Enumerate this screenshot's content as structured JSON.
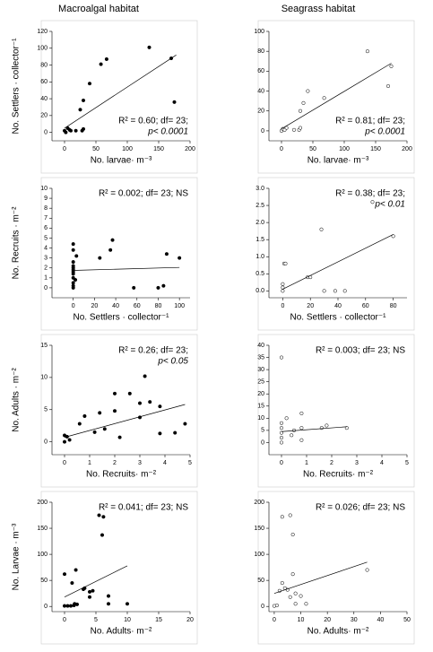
{
  "headers": [
    "Macroalgal habitat",
    "Seagrass habitat"
  ],
  "chart_data": [
    {
      "type": "scatter",
      "marker": "filled",
      "annotation_pos": "bottom-right",
      "xlabel": "No. larvae· m⁻³",
      "ylabel": "No. Settlers · collector⁻¹",
      "annotation": [
        "R² = 0.60; df= 23;",
        "p< 0.0001"
      ],
      "x": [
        0,
        2,
        5,
        8,
        10,
        18,
        25,
        28,
        30,
        30,
        40,
        58,
        67,
        135,
        170,
        175
      ],
      "values": [
        2,
        0,
        5,
        3,
        2,
        2,
        27,
        2,
        38,
        4,
        58,
        81,
        87,
        101,
        88,
        36
      ],
      "trend": {
        "x": [
          0,
          178
        ],
        "y": [
          5,
          92
        ]
      },
      "xlim": [
        -20,
        200
      ],
      "xticks": [
        0,
        50,
        100,
        150,
        200
      ],
      "ylim": [
        -10,
        120
      ],
      "yticks": [
        0,
        20,
        40,
        60,
        80,
        100,
        120
      ]
    },
    {
      "type": "scatter",
      "marker": "open",
      "annotation_pos": "bottom-right",
      "xlabel": "No. larvae· m⁻³",
      "ylabel": "",
      "annotation": [
        "R² = 0.81; df= 23;",
        "p< 0.0001"
      ],
      "x": [
        0,
        2,
        5,
        8,
        20,
        28,
        30,
        30,
        35,
        42,
        68,
        137,
        170,
        175
      ],
      "values": [
        0,
        2,
        1,
        3,
        1,
        1,
        3,
        20,
        28,
        40,
        33,
        80,
        45,
        65
      ],
      "trend": {
        "x": [
          0,
          175
        ],
        "y": [
          2,
          68
        ]
      },
      "xlim": [
        -20,
        200
      ],
      "xticks": [
        0,
        50,
        100,
        150,
        200
      ],
      "ylim": [
        -10,
        100
      ],
      "yticks": [
        0,
        20,
        40,
        60,
        80,
        100
      ]
    },
    {
      "type": "scatter",
      "marker": "filled",
      "annotation_pos": "top-right",
      "xlabel": "No. Settlers · collector⁻¹",
      "ylabel": "No. Recruits · m⁻²",
      "annotation": [
        "R² = 0.002; df= 23; NS"
      ],
      "x": [
        0,
        0,
        0,
        0,
        0,
        0,
        0,
        0,
        0,
        0,
        0,
        0,
        2,
        3,
        25,
        35,
        37,
        57,
        80,
        85,
        88,
        100
      ],
      "values": [
        0,
        0.2,
        0.5,
        1,
        1.4,
        1.6,
        1.8,
        2,
        2.2,
        2.6,
        3.8,
        4.4,
        0.8,
        3.2,
        3,
        3.8,
        4.8,
        0,
        0,
        0.2,
        3.4,
        3
      ],
      "trend": {
        "x": [
          0,
          100
        ],
        "y": [
          1.75,
          2.05
        ]
      },
      "xlim": [
        -20,
        110
      ],
      "xticks": [
        0,
        20,
        40,
        60,
        80,
        100
      ],
      "ylim": [
        -1,
        10
      ],
      "yticks": [
        0,
        1,
        2,
        3,
        4,
        5,
        6,
        7,
        8,
        9,
        10
      ]
    },
    {
      "type": "scatter",
      "marker": "open",
      "annotation_pos": "top-right",
      "xlabel": "No. Settlers · collector⁻¹",
      "ylabel": "",
      "annotation": [
        "R² = 0.38; df= 23;",
        "p< 0.01"
      ],
      "x": [
        0,
        0,
        0,
        1,
        2,
        18,
        20,
        28,
        30,
        38,
        45,
        65,
        80
      ],
      "values": [
        0,
        0.1,
        0.2,
        0.8,
        0.8,
        0.4,
        0.4,
        1.8,
        0,
        0,
        0,
        2.6,
        1.6
      ],
      "trend": {
        "x": [
          0,
          80
        ],
        "y": [
          0.05,
          1.65
        ]
      },
      "xlim": [
        -10,
        90
      ],
      "xticks": [
        0,
        20,
        40,
        60,
        80
      ],
      "ylim": [
        -0.2,
        3
      ],
      "yticks": [
        {
          "value": 0,
          "label": "0.0"
        },
        0.5,
        {
          "value": 1,
          "label": "1.0"
        },
        1.5,
        {
          "value": 2,
          "label": "2.0"
        },
        2.5,
        {
          "value": 3,
          "label": "3.0"
        }
      ]
    },
    {
      "type": "scatter",
      "marker": "filled",
      "annotation_pos": "top-right",
      "xlabel": "No. Recruits· m⁻²",
      "ylabel": "No. Adults · m⁻²",
      "annotation": [
        "R² = 0.26; df= 23;",
        "p< 0.05"
      ],
      "x": [
        0,
        0,
        0.1,
        0.2,
        0.6,
        0.8,
        1.2,
        1.4,
        1.6,
        2,
        2,
        2.2,
        2.6,
        3,
        3,
        3.2,
        3.4,
        3.8,
        3.8,
        4.4,
        4.8
      ],
      "values": [
        0,
        1,
        0.8,
        0.3,
        2.8,
        4,
        1.5,
        4.5,
        2,
        4.8,
        7.5,
        0.7,
        7.5,
        6,
        3.8,
        10.2,
        6.2,
        5.5,
        1.3,
        1.4,
        2.8
      ],
      "trend": {
        "x": [
          0,
          4.8
        ],
        "y": [
          0.7,
          5.8
        ]
      },
      "xlim": [
        -0.5,
        5
      ],
      "xticks": [
        0,
        1,
        2,
        3,
        4,
        5
      ],
      "ylim": [
        -2,
        15
      ],
      "yticks": [
        0,
        5,
        10,
        15
      ]
    },
    {
      "type": "scatter",
      "marker": "open",
      "annotation_pos": "top-right",
      "xlabel": "No. Recruits· m⁻²",
      "ylabel": "",
      "annotation": [
        "R² = 0.003; df= 23; NS"
      ],
      "x": [
        0,
        0,
        0,
        0,
        0,
        0,
        0.4,
        0.5,
        0.2,
        0.8,
        0.8,
        0.8,
        1.6,
        1.8,
        2.6
      ],
      "values": [
        0,
        2,
        4,
        6,
        8,
        35,
        3,
        5,
        10,
        12,
        6,
        1,
        6,
        7,
        6
      ],
      "trend": {
        "x": [
          0,
          2.6
        ],
        "y": [
          4.5,
          6.5
        ]
      },
      "xlim": [
        -0.5,
        5
      ],
      "xticks": [
        0,
        1,
        2,
        3,
        4,
        5
      ],
      "ylim": [
        -5,
        40
      ],
      "yticks": [
        0,
        5,
        10,
        15,
        20,
        25,
        30,
        35,
        40
      ]
    },
    {
      "type": "scatter",
      "marker": "filled",
      "annotation_pos": "top-right",
      "xlabel": "No. Adults· m⁻²",
      "ylabel": "No. Larvae · m⁻³",
      "annotation": [
        "R² = 0.041; df= 23; NS"
      ],
      "x": [
        0,
        0,
        0.5,
        1,
        1.2,
        1.5,
        1.6,
        1.8,
        2,
        3,
        3.2,
        4,
        4,
        4.5,
        5.5,
        6,
        6.2,
        7,
        7,
        10
      ],
      "values": [
        62,
        1,
        1,
        1,
        45,
        2,
        5,
        70,
        4,
        33,
        35,
        28,
        18,
        30,
        175,
        137,
        172,
        20,
        5,
        5
      ],
      "trend": {
        "x": [
          0,
          10
        ],
        "y": [
          18,
          78
        ]
      },
      "xlim": [
        -2,
        20
      ],
      "xticks": [
        0,
        5,
        10,
        15,
        20
      ],
      "ylim": [
        -10,
        200
      ],
      "yticks": [
        0,
        50,
        100,
        150,
        200
      ]
    },
    {
      "type": "scatter",
      "marker": "open",
      "annotation_pos": "top-right",
      "xlabel": "No. Adults· m⁻²",
      "ylabel": "",
      "annotation": [
        "R² = 0.026; df= 23; NS"
      ],
      "x": [
        0,
        1,
        2,
        3,
        3,
        4,
        5,
        6,
        6,
        7,
        7,
        8,
        8,
        10,
        12,
        35
      ],
      "values": [
        1,
        2,
        30,
        45,
        172,
        35,
        32,
        175,
        18,
        138,
        62,
        25,
        5,
        20,
        5,
        70
      ],
      "trend": {
        "x": [
          0,
          35
        ],
        "y": [
          25,
          85
        ]
      },
      "xlim": [
        -2,
        50
      ],
      "xticks": [
        0,
        10,
        20,
        30,
        40,
        50
      ],
      "ylim": [
        -10,
        200
      ],
      "yticks": [
        0,
        50,
        100,
        150,
        200
      ]
    }
  ]
}
